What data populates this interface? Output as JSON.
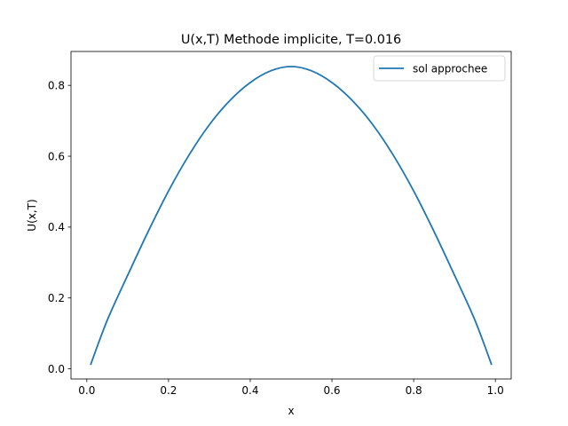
{
  "chart_data": {
    "type": "line",
    "title": "U(x,T) Methode implicite, T=0.016",
    "xlabel": "x",
    "ylabel": "U(x,T)",
    "xlim": [
      -0.0387,
      1.0387
    ],
    "ylim": [
      -0.0286,
      0.8956
    ],
    "xticks": [
      0.0,
      0.2,
      0.4,
      0.6,
      0.8,
      1.0
    ],
    "xtick_labels": [
      "0.0",
      "0.2",
      "0.4",
      "0.6",
      "0.8",
      "1.0"
    ],
    "yticks": [
      0.0,
      0.2,
      0.4,
      0.6,
      0.8
    ],
    "ytick_labels": [
      "0.0",
      "0.2",
      "0.4",
      "0.6",
      "0.8"
    ],
    "grid": false,
    "legend_position": "top-right",
    "series": [
      {
        "name": "sol approchee",
        "color": "#1f77b4",
        "x": [
          0.0099,
          0.05,
          0.1,
          0.15,
          0.2,
          0.25,
          0.3,
          0.35,
          0.4,
          0.45,
          0.5,
          0.55,
          0.6,
          0.65,
          0.7,
          0.75,
          0.8,
          0.85,
          0.9,
          0.95,
          0.9901
        ],
        "y": [
          0.0135,
          0.137,
          0.264,
          0.387,
          0.502,
          0.603,
          0.689,
          0.757,
          0.808,
          0.841,
          0.853,
          0.841,
          0.808,
          0.757,
          0.689,
          0.603,
          0.502,
          0.387,
          0.264,
          0.137,
          0.0135
        ]
      }
    ]
  }
}
